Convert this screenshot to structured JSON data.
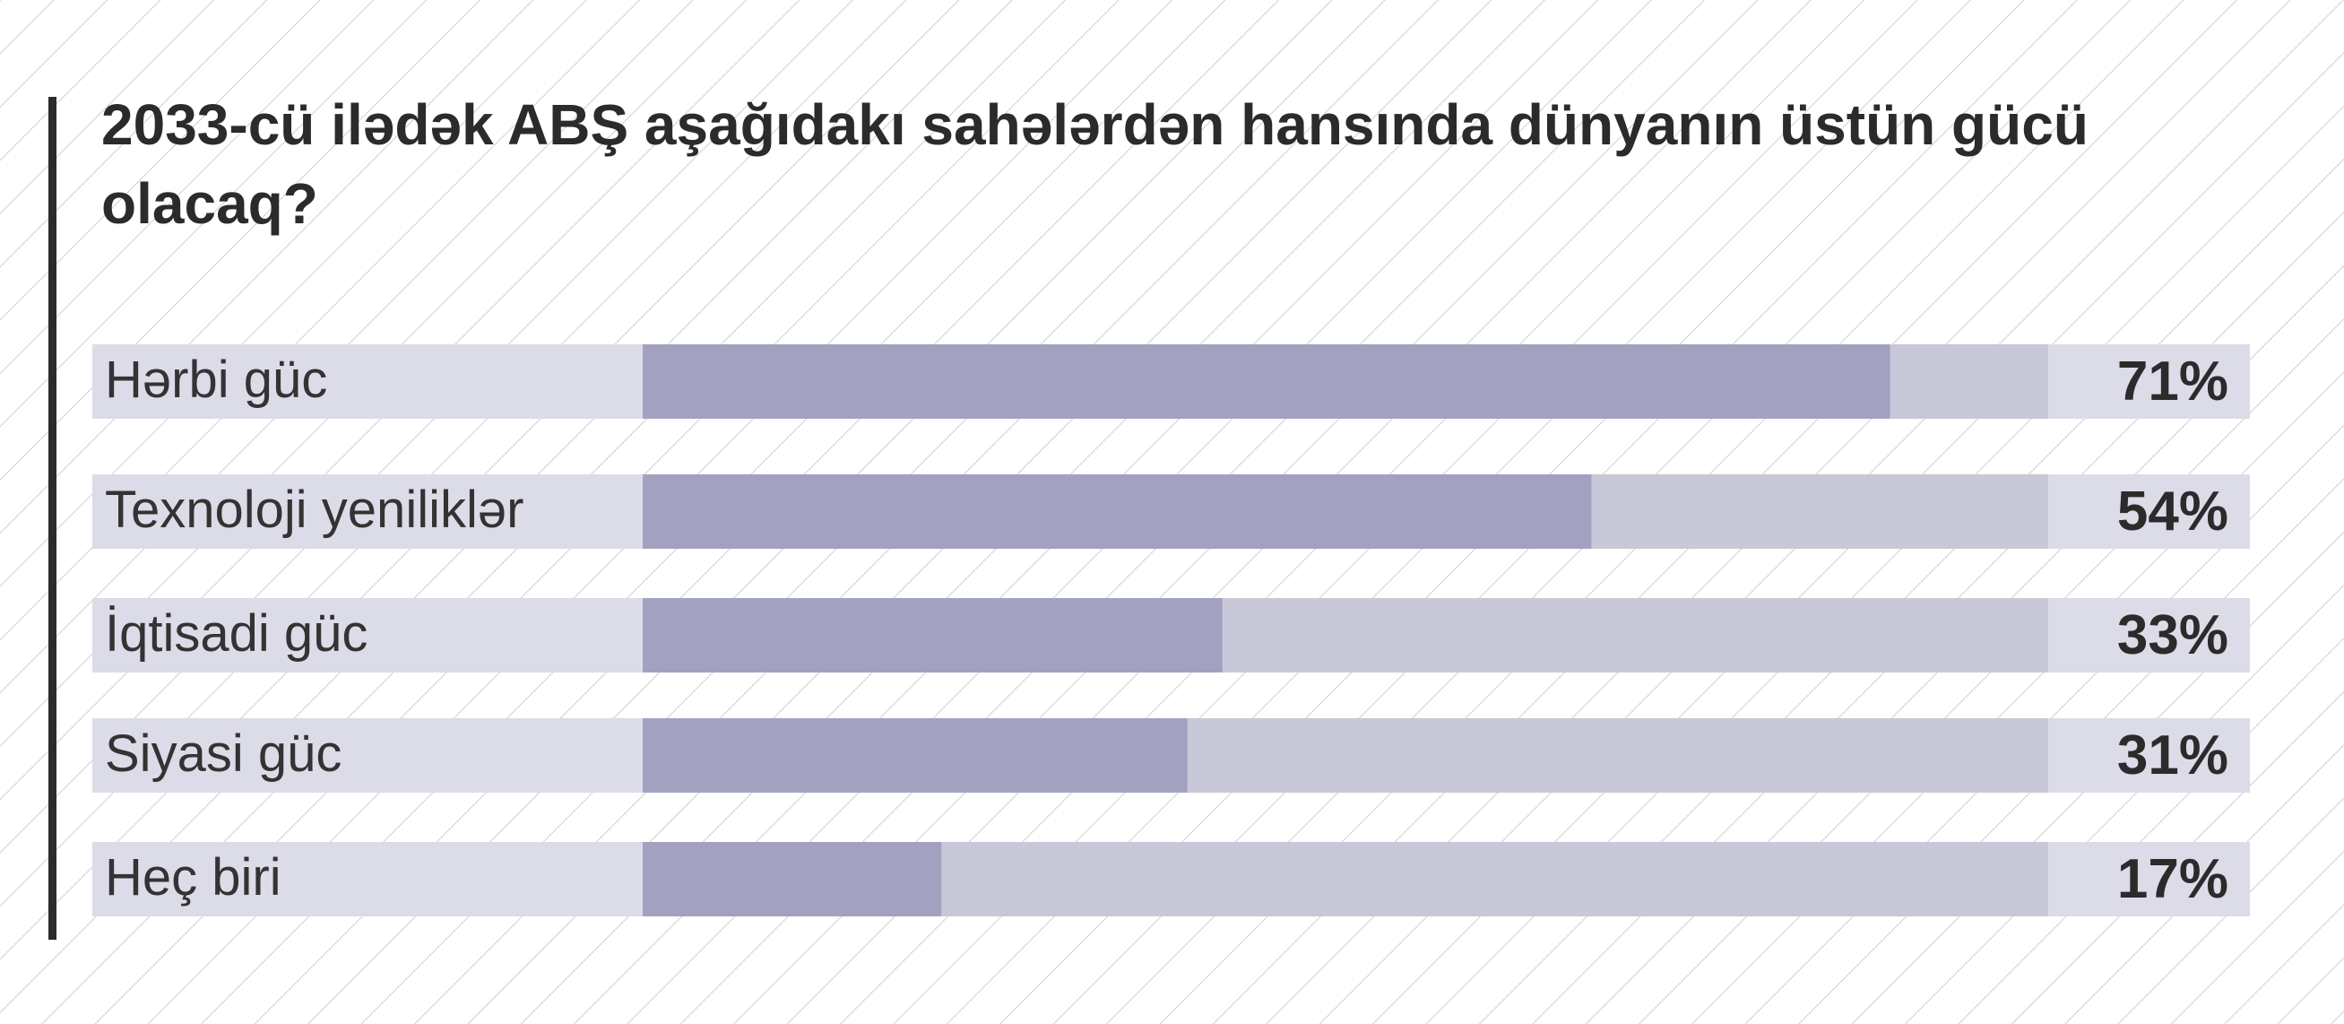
{
  "chart_data": {
    "type": "bar",
    "orientation": "horizontal",
    "title": "2033-cü ilədək ABŞ aşağıdakı sahələrdən hansında dünyanın üstün gücü olacaq?",
    "categories": [
      "Hərbi güc",
      "Texnoloji yeniliklər",
      "İqtisadi güc",
      "Siyasi güc",
      "Heç biri"
    ],
    "values": [
      71,
      54,
      33,
      31,
      17
    ],
    "value_labels": [
      "71%",
      "54%",
      "33%",
      "31%",
      "17%"
    ],
    "color": "#a2a2c0",
    "track_color": "#c8c8d8",
    "row_color": "#dcdce8",
    "xlim": [
      0,
      80
    ]
  }
}
